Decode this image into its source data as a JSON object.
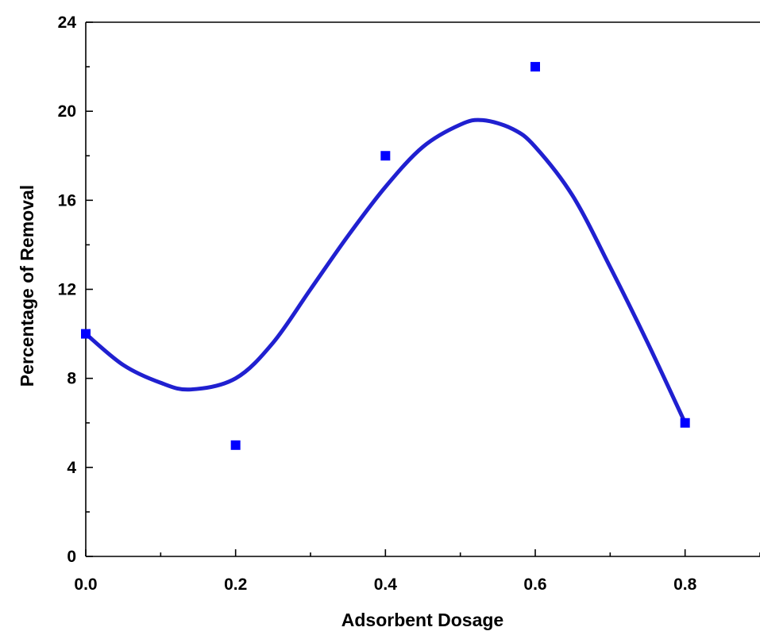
{
  "chart_data": {
    "type": "scatter",
    "xlabel": "Adsorbent Dosage",
    "ylabel": "Percentage of Removal",
    "xlim": [
      0,
      0.9
    ],
    "ylim": [
      0,
      24
    ],
    "x_ticks": [
      "0.0",
      "0.2",
      "0.4",
      "0.6",
      "0.8"
    ],
    "y_ticks": [
      "0",
      "4",
      "8",
      "12",
      "16",
      "20",
      "24"
    ],
    "grid": false,
    "legend": "none",
    "series": [
      {
        "type": "scatter",
        "color": "#0000ff",
        "marker": "square",
        "x": [
          0.0,
          0.2,
          0.4,
          0.6,
          0.8
        ],
        "y": [
          10,
          5,
          18,
          22,
          6
        ]
      },
      {
        "type": "line",
        "color": "#2020d0",
        "x": [
          0.0,
          0.05,
          0.1,
          0.14,
          0.2,
          0.25,
          0.3,
          0.35,
          0.4,
          0.45,
          0.5,
          0.53,
          0.57,
          0.6,
          0.65,
          0.7,
          0.75,
          0.8
        ],
        "y": [
          10.0,
          8.6,
          7.8,
          7.5,
          8.0,
          9.6,
          12.0,
          14.4,
          16.6,
          18.4,
          19.4,
          19.6,
          19.2,
          18.4,
          16.2,
          13.0,
          9.6,
          6.0
        ]
      }
    ]
  }
}
